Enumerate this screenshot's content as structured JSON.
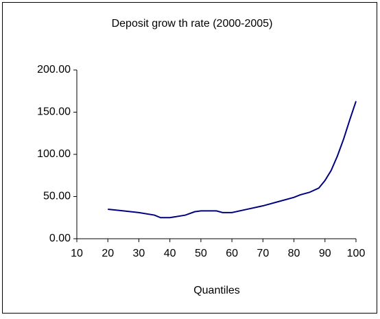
{
  "chart_data": {
    "type": "line",
    "title": "Deposit grow th rate (2000-2005)",
    "x_label": "Quantiles",
    "x": [
      20,
      25,
      30,
      35,
      37,
      40,
      45,
      48,
      50,
      55,
      57,
      60,
      65,
      70,
      75,
      80,
      82,
      85,
      88,
      90,
      92,
      94,
      96,
      98,
      100
    ],
    "series": [
      {
        "color": "#000080",
        "values": [
          35,
          33,
          31,
          28,
          25,
          25,
          28,
          32,
          33,
          33,
          31,
          31,
          35,
          39,
          44,
          49,
          52,
          55,
          60,
          69,
          81,
          98,
          118,
          141,
          163
        ]
      }
    ],
    "xlim": [
      10,
      100
    ],
    "xticks": [
      10,
      20,
      30,
      40,
      50,
      60,
      70,
      80,
      90,
      100
    ],
    "ylim": [
      0,
      200
    ],
    "yticks": [
      {
        "value": 0,
        "label": "0.00"
      },
      {
        "value": 50,
        "label": "50.00"
      },
      {
        "value": 100,
        "label": "100.00"
      },
      {
        "value": 150,
        "label": "150.00"
      },
      {
        "value": 200,
        "label": "200.00"
      }
    ]
  }
}
